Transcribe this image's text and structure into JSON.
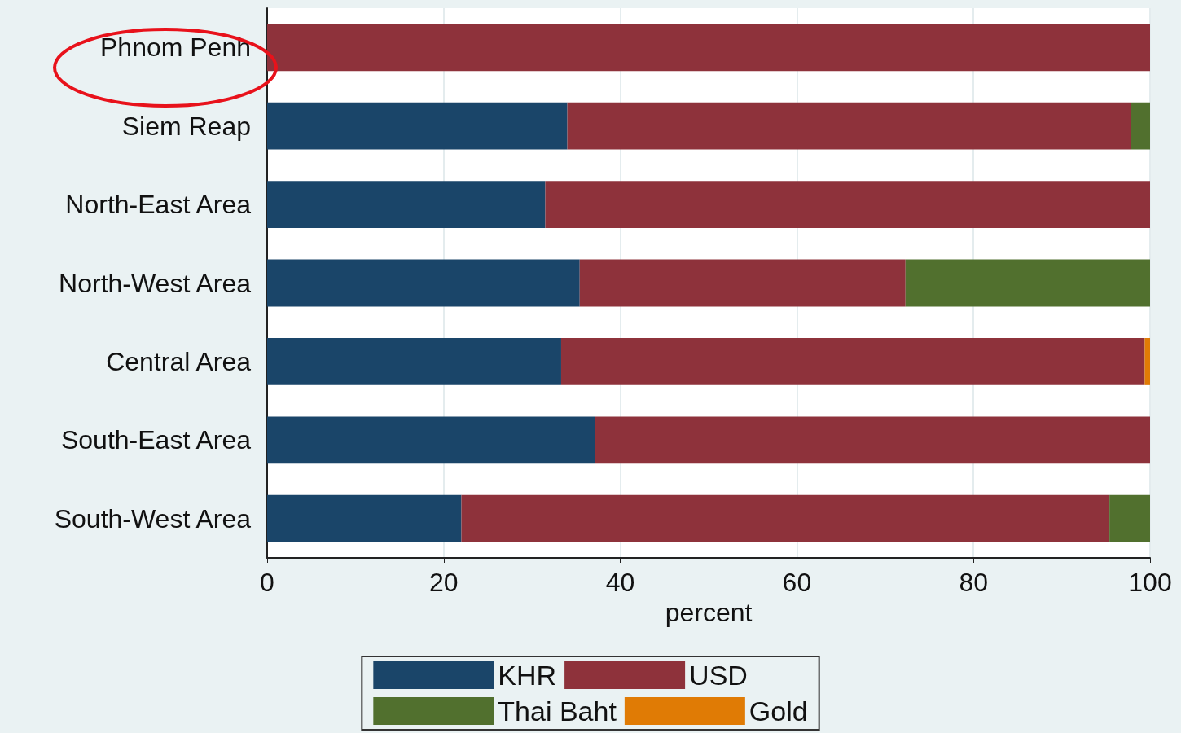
{
  "chart_data": {
    "type": "bar",
    "orientation": "horizontal",
    "stacked": true,
    "categories": [
      "Phnom Penh",
      "Siem Reap",
      "North-East Area",
      "North-West Area",
      "Central Area",
      "South-East Area",
      "South-West Area"
    ],
    "series": [
      {
        "name": "KHR",
        "color": "#1a4569",
        "values": [
          0,
          34.0,
          31.5,
          35.4,
          33.3,
          37.1,
          22.0
        ]
      },
      {
        "name": "USD",
        "color": "#8e323b",
        "values": [
          100,
          63.8,
          68.5,
          36.9,
          66.1,
          62.9,
          73.4
        ]
      },
      {
        "name": "Thai Baht",
        "color": "#51702e",
        "values": [
          0,
          2.2,
          0,
          27.7,
          0,
          0,
          4.6
        ]
      },
      {
        "name": "Gold",
        "color": "#e07b05",
        "values": [
          0,
          0,
          0,
          0,
          0.6,
          0,
          0
        ]
      }
    ],
    "xlabel": "percent",
    "xlim": [
      0,
      100
    ],
    "xticks": [
      0,
      20,
      40,
      60,
      80,
      100
    ],
    "grid": "x",
    "legend": "bottom"
  }
}
